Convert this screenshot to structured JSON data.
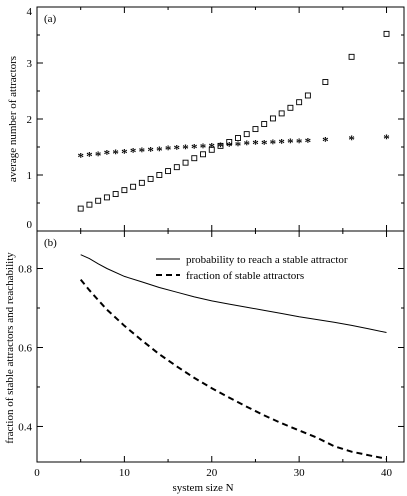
{
  "chart_data": [
    {
      "type": "scatter",
      "panel_label": "(a)",
      "ylabel": "average number of attractors",
      "xlabel": "",
      "xlim": [
        0,
        42
      ],
      "ylim": [
        0,
        4
      ],
      "xticks": [
        "0",
        "10",
        "20",
        "30",
        "40"
      ],
      "yticks": [
        "0",
        "1",
        "2",
        "3",
        "4"
      ],
      "grid": false,
      "series": [
        {
          "marker": "square",
          "x": [
            5,
            6,
            7,
            8,
            9,
            10,
            11,
            12,
            13,
            14,
            15,
            16,
            17,
            18,
            19,
            20,
            21,
            22,
            23,
            24,
            25,
            26,
            27,
            28,
            29,
            30,
            31,
            33,
            36,
            40
          ],
          "y": [
            0.4,
            0.47,
            0.54,
            0.6,
            0.66,
            0.73,
            0.79,
            0.86,
            0.93,
            1.0,
            1.07,
            1.14,
            1.22,
            1.3,
            1.37,
            1.45,
            1.52,
            1.59,
            1.66,
            1.73,
            1.82,
            1.91,
            2.01,
            2.1,
            2.2,
            2.3,
            2.42,
            2.66,
            3.11,
            3.52
          ]
        },
        {
          "marker": "asterisk",
          "x": [
            5,
            6,
            7,
            8,
            9,
            10,
            11,
            12,
            13,
            14,
            15,
            16,
            17,
            18,
            19,
            20,
            21,
            22,
            23,
            24,
            25,
            26,
            27,
            28,
            29,
            30,
            31,
            33,
            36,
            40
          ],
          "y": [
            1.33,
            1.35,
            1.36,
            1.38,
            1.39,
            1.4,
            1.42,
            1.43,
            1.44,
            1.45,
            1.46,
            1.47,
            1.48,
            1.49,
            1.5,
            1.51,
            1.52,
            1.53,
            1.54,
            1.55,
            1.56,
            1.56,
            1.57,
            1.58,
            1.59,
            1.59,
            1.6,
            1.62,
            1.64,
            1.66
          ]
        }
      ]
    },
    {
      "type": "line",
      "panel_label": "(b)",
      "ylabel": "fraction of stable attractors and reachability",
      "xlabel": "system size N",
      "xlim": [
        0,
        42
      ],
      "ylim": [
        0.31,
        0.895
      ],
      "xticks": [
        "0",
        "10",
        "20",
        "30",
        "40"
      ],
      "yticks": [
        "0.4",
        "0.6",
        "0.8"
      ],
      "grid": false,
      "legend_position": "top-right",
      "series": [
        {
          "name": "probability to reach a stable attractor",
          "line_style": "solid",
          "x": [
            5,
            6,
            7,
            8,
            10,
            12,
            14,
            16,
            18,
            20,
            22,
            24,
            26,
            28,
            30,
            32,
            34,
            36,
            38,
            40
          ],
          "y": [
            0.835,
            0.825,
            0.812,
            0.8,
            0.78,
            0.766,
            0.752,
            0.74,
            0.728,
            0.718,
            0.71,
            0.702,
            0.694,
            0.686,
            0.678,
            0.671,
            0.664,
            0.656,
            0.647,
            0.638
          ]
        },
        {
          "name": "fraction of stable attractors",
          "line_style": "dashed",
          "x": [
            5,
            6,
            7,
            8,
            10,
            12,
            14,
            16,
            18,
            20,
            22,
            24,
            26,
            28,
            30,
            32,
            34,
            36,
            38,
            40
          ],
          "y": [
            0.772,
            0.745,
            0.72,
            0.696,
            0.655,
            0.618,
            0.583,
            0.552,
            0.523,
            0.497,
            0.473,
            0.45,
            0.428,
            0.408,
            0.39,
            0.372,
            0.35,
            0.336,
            0.327,
            0.318
          ]
        }
      ]
    }
  ]
}
